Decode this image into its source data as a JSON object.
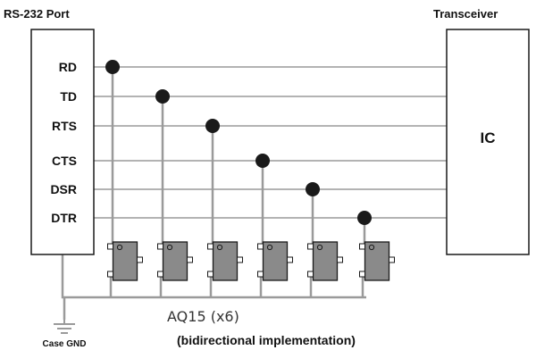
{
  "rs232": {
    "title": "RS-232 Port",
    "signals": [
      "RD",
      "TD",
      "RTS",
      "CTS",
      "DSR",
      "DTR"
    ]
  },
  "transceiver": {
    "title": "Transceiver",
    "chip_label": "IC"
  },
  "ground": {
    "label": "Case GND"
  },
  "device": {
    "part_label": "AQ15 (x6)",
    "implementation_note": "(bidirectional implementation)",
    "count": 6
  },
  "colors": {
    "wire": "#9a9a9a",
    "device_fill": "#8a8a8a",
    "node": "#1a1a1a",
    "outline": "#1a1a1a"
  }
}
